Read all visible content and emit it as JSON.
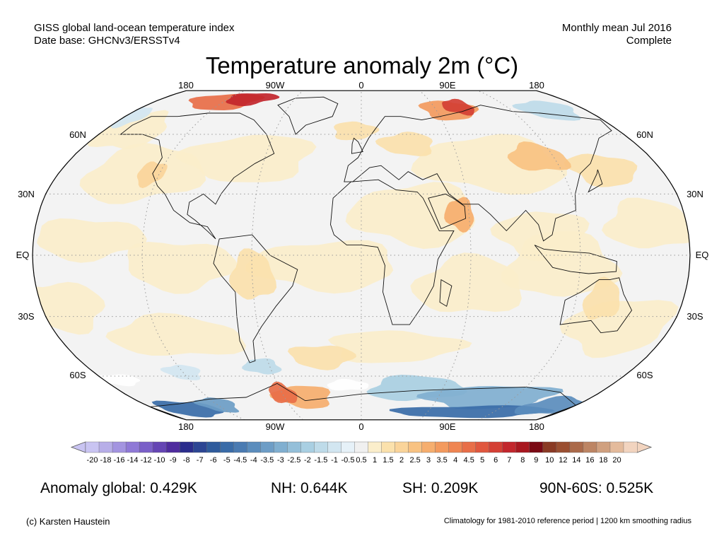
{
  "header": {
    "dataset": "GISS global land-ocean temperature index",
    "database": "Date base: GHCNv3/ERSSTv4",
    "period": "Monthly mean Jul 2016",
    "status": "Complete"
  },
  "title": "Temperature anomaly 2m (°C)",
  "map": {
    "projection": "robinson",
    "lon_labels": [
      "180",
      "90W",
      "0",
      "90E",
      "180"
    ],
    "lat_labels_left": [
      "60N",
      "30N",
      "EQ",
      "30S",
      "60S"
    ],
    "lat_labels_right": [
      "60N",
      "30N",
      "EQ",
      "30S",
      "60S"
    ]
  },
  "colorbar": {
    "labels": [
      "-20",
      "-18",
      "-16",
      "-14",
      "-12",
      "-10",
      "-9",
      "-8",
      "-7",
      "-6",
      "-5",
      "-4.5",
      "-4",
      "-3.5",
      "-3",
      "-2.5",
      "-2",
      "-1.5",
      "-1",
      "-0.5",
      "0.5",
      "1",
      "1.5",
      "2",
      "2.5",
      "3",
      "3.5",
      "4",
      "4.5",
      "5",
      "6",
      "7",
      "8",
      "9",
      "10",
      "12",
      "14",
      "16",
      "18",
      "20"
    ],
    "colors": [
      "#c9c4f2",
      "#b7aee8",
      "#a394e0",
      "#8f79d6",
      "#7a5fc8",
      "#6545b4",
      "#4f2c9e",
      "#2a2c8c",
      "#2c4593",
      "#2f5b9c",
      "#3a6ca8",
      "#4a7bb2",
      "#5b8dbd",
      "#6d9dc6",
      "#80afd0",
      "#94bfd9",
      "#a9cfe2",
      "#bedbe9",
      "#d2e6f1",
      "#e6f1f8",
      "#f0f0f0",
      "#fbeecb",
      "#fbe1ac",
      "#fad49a",
      "#f8c282",
      "#f6ae6e",
      "#f39a5e",
      "#ef8552",
      "#e86e48",
      "#e0573e",
      "#d43f34",
      "#c2262c",
      "#a8171f",
      "#7b0a14",
      "#8a3a24",
      "#9a4f31",
      "#ab6a4a",
      "#bd8564",
      "#d0a07f",
      "#e4bb9c",
      "#f2d4bf"
    ]
  },
  "stats": {
    "global": "Anomaly global: 0.429K",
    "nh": "NH: 0.644K",
    "sh": "SH: 0.209K",
    "polar": "90N-60S: 0.525K"
  },
  "footer": {
    "credit": "(c) Karsten Haustein",
    "note": "Climatology for 1981-2010 reference period | 1200 km smoothing radius"
  }
}
